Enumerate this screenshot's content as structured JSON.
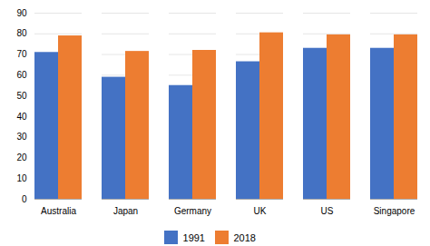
{
  "chart_data": {
    "type": "bar",
    "categories": [
      "Australia",
      "Japan",
      "Germany",
      "UK",
      "US",
      "Singapore"
    ],
    "series": [
      {
        "name": "1991",
        "color": "#4472c4",
        "values": [
          71,
          59,
          55,
          66.5,
          73,
          73
        ]
      },
      {
        "name": "2018",
        "color": "#ed7d31",
        "values": [
          79,
          71.5,
          72,
          80.5,
          79.5,
          79.5
        ]
      }
    ],
    "ylim": [
      0,
      90
    ],
    "yticks": [
      0,
      10,
      20,
      30,
      40,
      50,
      60,
      70,
      80,
      90
    ],
    "grid": true,
    "legend": "bottom"
  }
}
